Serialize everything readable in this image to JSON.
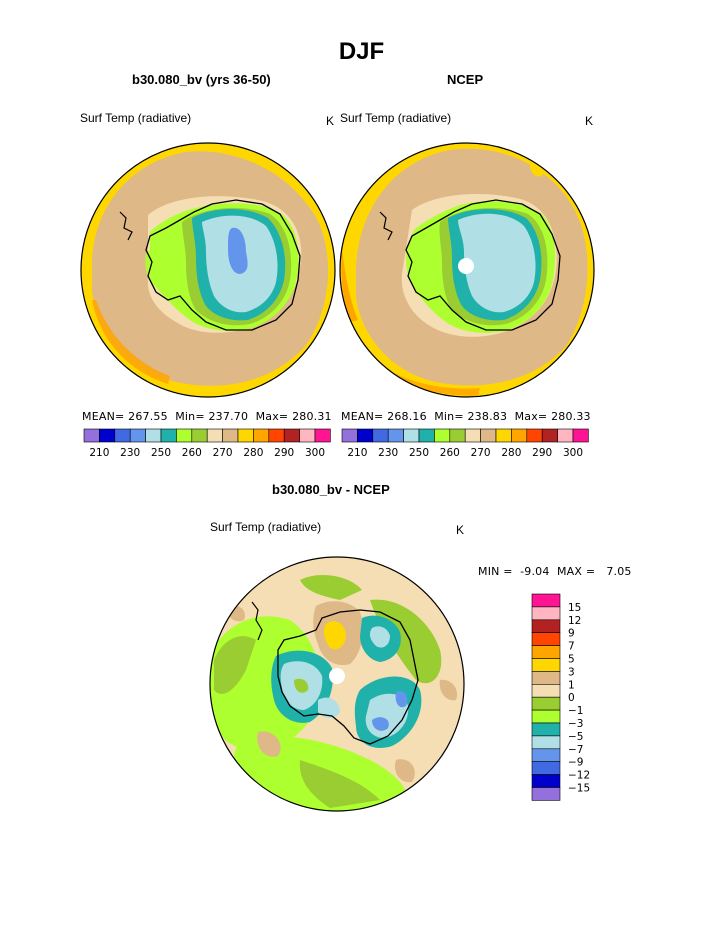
{
  "page": {
    "title": "DJF"
  },
  "panels": [
    {
      "title": "b30.080_bv (yrs 36-50)",
      "field": "Surf Temp (radiative)",
      "units": "K",
      "stats": {
        "mean_label": "MEAN=",
        "mean": "267.55",
        "min_label": "Min=",
        "min": "237.70",
        "max_label": "Max=",
        "max": "280.31"
      }
    },
    {
      "title": "NCEP",
      "field": "Surf Temp (radiative)",
      "units": "K",
      "stats": {
        "mean_label": "MEAN=",
        "mean": "268.16",
        "min_label": "Min=",
        "min": "238.83",
        "max_label": "Max=",
        "max": "280.33"
      }
    },
    {
      "title": "b30.080_bv - NCEP",
      "field": "Surf Temp (radiative)",
      "units": "K",
      "stats": {
        "min_label": "MIN =",
        "min": "-9.04",
        "max_label": "MAX =",
        "max": "7.05"
      }
    }
  ],
  "temp_colorbar": {
    "colors": [
      "#9370db",
      "#0000cd",
      "#4169e1",
      "#6495ed",
      "#b0e0e6",
      "#20b2aa",
      "#adff2f",
      "#9acd32",
      "#f5deb3",
      "#deb887",
      "#ffd700",
      "#ffa500",
      "#ff4500",
      "#b22222",
      "#ffb6c1",
      "#ff1493"
    ],
    "labels": [
      "210",
      "230",
      "250",
      "260",
      "270",
      "280",
      "290",
      "300"
    ]
  },
  "diff_colorbar": {
    "colors": [
      "#ff1493",
      "#ffb6c1",
      "#b22222",
      "#ff4500",
      "#ffa500",
      "#ffd700",
      "#deb887",
      "#f5deb3",
      "#9acd32",
      "#adff2f",
      "#20b2aa",
      "#b0e0e6",
      "#6495ed",
      "#4169e1",
      "#0000cd",
      "#9370db"
    ],
    "labels": [
      "15",
      "12",
      "9",
      "7",
      "5",
      "3",
      "1",
      "0",
      "−1",
      "−3",
      "−5",
      "−7",
      "−9",
      "−12",
      "−15"
    ]
  }
}
